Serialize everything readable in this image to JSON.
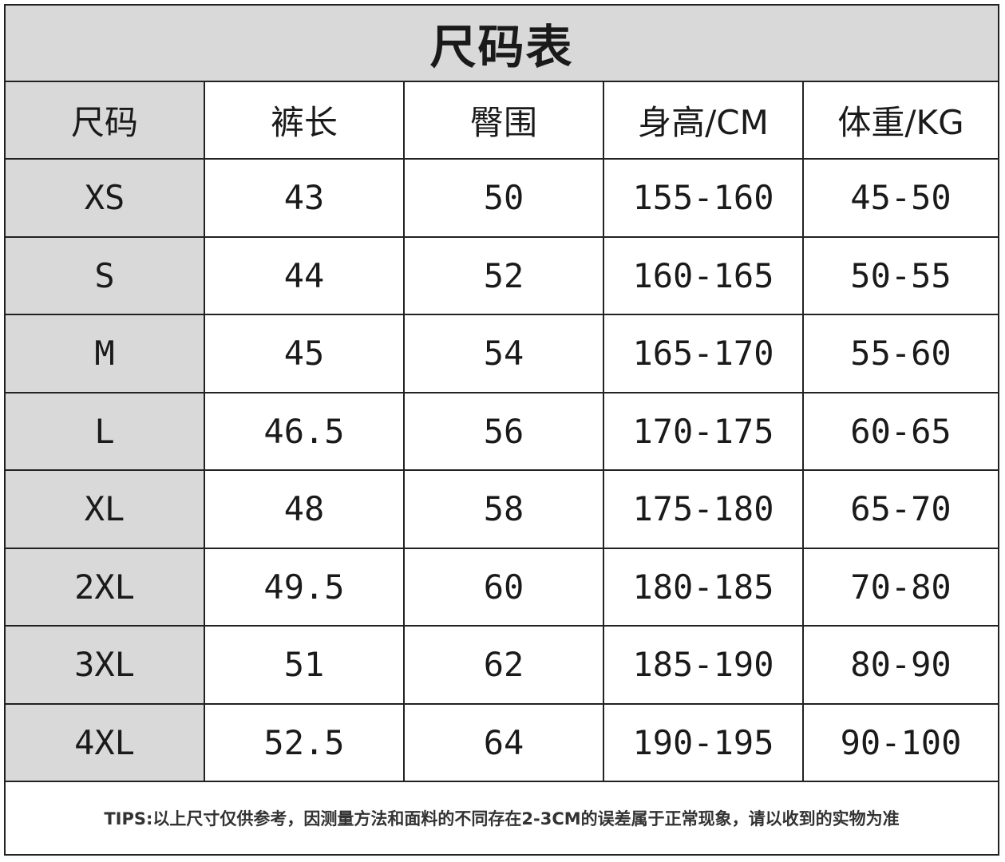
{
  "title": "尺码表",
  "headers": [
    "尺码",
    "裤长",
    "臀围",
    "身高/CM",
    "体重/KG"
  ],
  "rows": [
    [
      "XS",
      "43",
      "50",
      "155-160",
      "45-50"
    ],
    [
      "S",
      "44",
      "52",
      "160-165",
      "50-55"
    ],
    [
      "M",
      "45",
      "54",
      "165-170",
      "55-60"
    ],
    [
      "L",
      "46.5",
      "56",
      "170-175",
      "60-65"
    ],
    [
      "XL",
      "48",
      "58",
      "175-180",
      "65-70"
    ],
    [
      "2XL",
      "49.5",
      "60",
      "180-185",
      "70-80"
    ],
    [
      "3XL",
      "51",
      "62",
      "185-190",
      "80-90"
    ],
    [
      "4XL",
      "52.5",
      "64",
      "190-195",
      "90-100"
    ]
  ],
  "tips": "TIPS:以上尺寸仅供参考，因测量方法和面料的不同存在2-3CM的误差属于正常现象，请以收到的实物为准",
  "colors": {
    "header_fill": "#d9d9d9",
    "border": "#222222"
  }
}
